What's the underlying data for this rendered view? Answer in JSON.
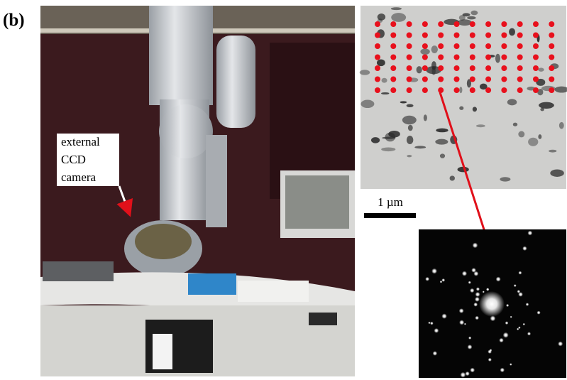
{
  "panel_label": "(b)",
  "camera_annotation": {
    "lines": [
      "external",
      "CCD",
      "camera"
    ]
  },
  "scale_bar": {
    "label": "1 µm"
  }
}
